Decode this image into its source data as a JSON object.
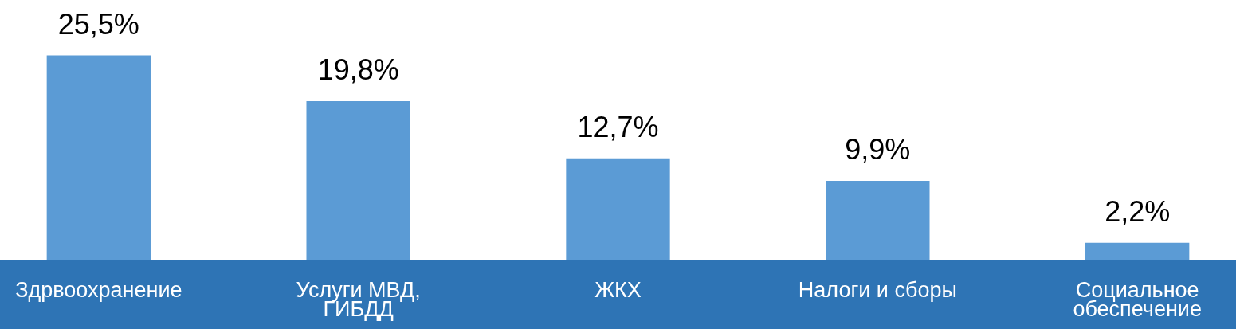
{
  "chart_data": {
    "type": "bar",
    "categories": [
      "Здрвоохранение",
      "Услуги МВД, ГИБДД",
      "ЖКХ",
      "Налоги и сборы",
      "Социальное обеспечение"
    ],
    "values": [
      25.5,
      19.8,
      12.7,
      9.9,
      2.2
    ],
    "value_labels": [
      "25,5%",
      "19,8%",
      "12,7%",
      "9,9%",
      "2,2%"
    ],
    "color": "#5b9bd5"
  }
}
